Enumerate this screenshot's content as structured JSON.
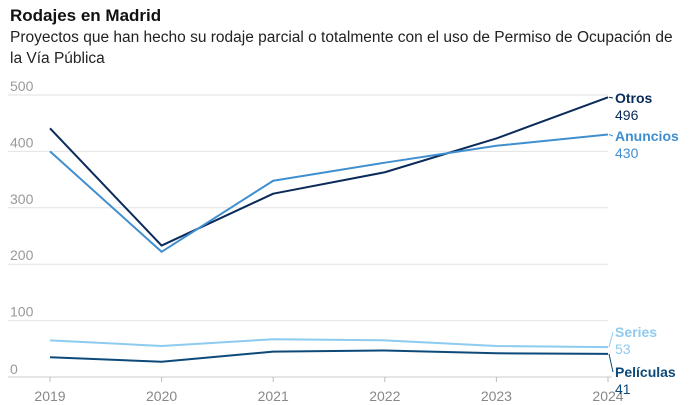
{
  "header": {
    "title": "Rodajes en Madrid",
    "subtitle": "Proyectos que han hecho su rodaje parcial o totalmente con el uso de Permiso de Ocupación de la Vía Pública"
  },
  "chart_data": {
    "type": "line",
    "title": "Rodajes en Madrid",
    "subtitle": "Proyectos que han hecho su rodaje parcial o totalmente con el uso de Permiso de Ocupación de la Vía Pública",
    "x": [
      "2019",
      "2020",
      "2021",
      "2022",
      "2023",
      "2024"
    ],
    "ylim": [
      0,
      500
    ],
    "yticks": [
      0,
      100,
      200,
      300,
      400,
      500
    ],
    "grid": true,
    "legend": "direct labels at line ends",
    "series": [
      {
        "name": "Otros",
        "values": [
          441,
          233,
          325,
          363,
          423,
          496
        ],
        "end_label": "496",
        "color": "#0a2a5a"
      },
      {
        "name": "Anuncios",
        "values": [
          400,
          222,
          348,
          380,
          410,
          430
        ],
        "end_label": "430",
        "color": "#3f8fd0"
      },
      {
        "name": "Series",
        "values": [
          65,
          55,
          67,
          65,
          55,
          53
        ],
        "end_label": "53",
        "color": "#8ecbf0"
      },
      {
        "name": "Películas",
        "values": [
          35,
          27,
          45,
          47,
          42,
          41
        ],
        "end_label": "41",
        "color": "#0d4a7a"
      }
    ]
  }
}
